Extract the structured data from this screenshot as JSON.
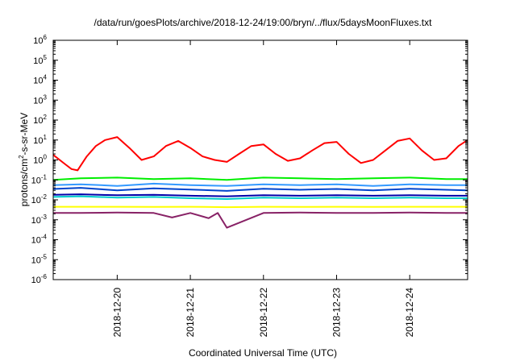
{
  "chart_data": {
    "type": "line",
    "title": "/data/run/goesPlots/archive/2018-12-24/19:00/bryn/../flux/5daysMoonFluxes.txt",
    "xlabel": "Coordinated Universal Time (UTC)",
    "ylabel": {
      "base": "protons/cm",
      "sup": "2",
      "rest": "-s-sr-MeV"
    },
    "y_scale": "log",
    "ylim": [
      1e-06,
      1000000.0
    ],
    "y_ticks": [
      {
        "value": 1e-06,
        "base": "10",
        "exp": "-6"
      },
      {
        "value": 1e-05,
        "base": "10",
        "exp": "-5"
      },
      {
        "value": 0.0001,
        "base": "10",
        "exp": "-4"
      },
      {
        "value": 0.001,
        "base": "10",
        "exp": "-3"
      },
      {
        "value": 0.01,
        "base": "10",
        "exp": "-2"
      },
      {
        "value": 0.1,
        "base": "10",
        "exp": "-1"
      },
      {
        "value": 1,
        "base": "10",
        "exp": "0"
      },
      {
        "value": 10,
        "base": "10",
        "exp": "1"
      },
      {
        "value": 100,
        "base": "10",
        "exp": "2"
      },
      {
        "value": 1000,
        "base": "10",
        "exp": "3"
      },
      {
        "value": 10000,
        "base": "10",
        "exp": "4"
      },
      {
        "value": 100000,
        "base": "10",
        "exp": "5"
      },
      {
        "value": 1000000,
        "base": "10",
        "exp": "6"
      }
    ],
    "xlim": [
      "2018-12-19 03:00",
      "2018-12-24 19:00"
    ],
    "x_ticks": [
      "2018-12-20",
      "2018-12-21",
      "2018-12-22",
      "2018-12-23",
      "2018-12-24"
    ],
    "grid": false,
    "series": [
      {
        "color": "#ff0000",
        "x": [
          "2018-12-19 03:00",
          "2018-12-19 07:00",
          "2018-12-19 09:00",
          "2018-12-19 11:00",
          "2018-12-19 14:00",
          "2018-12-19 17:00",
          "2018-12-19 20:00",
          "2018-12-20 00:00",
          "2018-12-20 04:00",
          "2018-12-20 08:00",
          "2018-12-20 12:00",
          "2018-12-20 16:00",
          "2018-12-20 20:00",
          "2018-12-21 00:00",
          "2018-12-21 04:00",
          "2018-12-21 08:00",
          "2018-12-21 12:00",
          "2018-12-21 16:00",
          "2018-12-21 20:00",
          "2018-12-22 00:00",
          "2018-12-22 04:00",
          "2018-12-22 08:00",
          "2018-12-22 12:00",
          "2018-12-22 16:00",
          "2018-12-22 20:00",
          "2018-12-23 00:00",
          "2018-12-23 04:00",
          "2018-12-23 08:00",
          "2018-12-23 12:00",
          "2018-12-23 16:00",
          "2018-12-23 20:00",
          "2018-12-24 00:00",
          "2018-12-24 04:00",
          "2018-12-24 08:00",
          "2018-12-24 12:00",
          "2018-12-24 16:00",
          "2018-12-24 19:00"
        ],
        "y": [
          1.8,
          0.6,
          0.35,
          0.3,
          1.5,
          5,
          10,
          14,
          4,
          1,
          1.5,
          5,
          9,
          4,
          1.5,
          1,
          0.8,
          2,
          5,
          6,
          2,
          0.9,
          1.2,
          3,
          7,
          8,
          2,
          0.7,
          1,
          3,
          9,
          12,
          3,
          1,
          1.2,
          5,
          10
        ]
      },
      {
        "color": "#00ee00",
        "x": [
          "2018-12-19 03:00",
          "2018-12-19 12:00",
          "2018-12-20 00:00",
          "2018-12-20 12:00",
          "2018-12-21 00:00",
          "2018-12-21 12:00",
          "2018-12-22 00:00",
          "2018-12-22 12:00",
          "2018-12-23 00:00",
          "2018-12-23 12:00",
          "2018-12-24 00:00",
          "2018-12-24 12:00",
          "2018-12-24 19:00"
        ],
        "y": [
          0.1,
          0.12,
          0.13,
          0.11,
          0.12,
          0.1,
          0.13,
          0.12,
          0.11,
          0.12,
          0.13,
          0.11,
          0.11
        ]
      },
      {
        "color": "#3399ff",
        "x": [
          "2018-12-19 03:00",
          "2018-12-19 12:00",
          "2018-12-20 00:00",
          "2018-12-20 12:00",
          "2018-12-21 00:00",
          "2018-12-21 12:00",
          "2018-12-22 00:00",
          "2018-12-22 12:00",
          "2018-12-23 00:00",
          "2018-12-23 12:00",
          "2018-12-24 00:00",
          "2018-12-24 12:00",
          "2018-12-24 19:00"
        ],
        "y": [
          0.055,
          0.06,
          0.05,
          0.065,
          0.055,
          0.05,
          0.06,
          0.055,
          0.06,
          0.05,
          0.06,
          0.055,
          0.055
        ]
      },
      {
        "color": "#0044cc",
        "x": [
          "2018-12-19 03:00",
          "2018-12-19 12:00",
          "2018-12-20 00:00",
          "2018-12-20 12:00",
          "2018-12-21 00:00",
          "2018-12-21 12:00",
          "2018-12-22 00:00",
          "2018-12-22 12:00",
          "2018-12-23 00:00",
          "2018-12-23 12:00",
          "2018-12-24 00:00",
          "2018-12-24 12:00",
          "2018-12-24 19:00"
        ],
        "y": [
          0.035,
          0.04,
          0.03,
          0.038,
          0.033,
          0.028,
          0.036,
          0.032,
          0.035,
          0.03,
          0.036,
          0.032,
          0.03
        ]
      },
      {
        "color": "#00cccc",
        "x": [
          "2018-12-19 03:00",
          "2018-12-19 12:00",
          "2018-12-20 00:00",
          "2018-12-20 12:00",
          "2018-12-21 00:00",
          "2018-12-21 12:00",
          "2018-12-22 00:00",
          "2018-12-22 12:00",
          "2018-12-23 00:00",
          "2018-12-23 12:00",
          "2018-12-24 00:00",
          "2018-12-24 12:00",
          "2018-12-24 19:00"
        ],
        "y": [
          0.014,
          0.015,
          0.013,
          0.014,
          0.012,
          0.011,
          0.013,
          0.012,
          0.013,
          0.012,
          0.013,
          0.012,
          0.012
        ]
      },
      {
        "color": "#0000aa",
        "x": [
          "2018-12-19 03:00",
          "2018-12-19 12:00",
          "2018-12-20 00:00",
          "2018-12-20 12:00",
          "2018-12-21 00:00",
          "2018-12-21 12:00",
          "2018-12-22 00:00",
          "2018-12-22 12:00",
          "2018-12-23 00:00",
          "2018-12-23 12:00",
          "2018-12-24 00:00",
          "2018-12-24 12:00",
          "2018-12-24 19:00"
        ],
        "y": [
          0.018,
          0.019,
          0.017,
          0.018,
          0.016,
          0.015,
          0.017,
          0.016,
          0.017,
          0.016,
          0.017,
          0.016,
          0.016
        ]
      },
      {
        "color": "#ffff00",
        "x": [
          "2018-12-19 03:00",
          "2018-12-19 12:00",
          "2018-12-20 00:00",
          "2018-12-20 12:00",
          "2018-12-21 00:00",
          "2018-12-21 12:00",
          "2018-12-22 00:00",
          "2018-12-22 12:00",
          "2018-12-23 00:00",
          "2018-12-23 12:00",
          "2018-12-24 00:00",
          "2018-12-24 12:00",
          "2018-12-24 19:00"
        ],
        "y": [
          0.0045,
          0.0045,
          0.0045,
          0.0044,
          0.0045,
          0.0043,
          0.0045,
          0.0044,
          0.0045,
          0.0044,
          0.0045,
          0.0045,
          0.0045
        ]
      },
      {
        "color": "#882266",
        "x": [
          "2018-12-19 03:00",
          "2018-12-19 12:00",
          "2018-12-20 00:00",
          "2018-12-20 12:00",
          "2018-12-20 18:00",
          "2018-12-21 00:00",
          "2018-12-21 06:00",
          "2018-12-21 09:00",
          "2018-12-21 12:00",
          "2018-12-22 00:00",
          "2018-12-22 12:00",
          "2018-12-23 00:00",
          "2018-12-23 12:00",
          "2018-12-24 00:00",
          "2018-12-24 12:00",
          "2018-12-24 19:00"
        ],
        "y": [
          0.0022,
          0.0022,
          0.0023,
          0.0022,
          0.0013,
          0.0022,
          0.0012,
          0.0022,
          0.0004,
          0.0022,
          0.0023,
          0.0022,
          0.0022,
          0.0023,
          0.0022,
          0.0022
        ]
      }
    ]
  }
}
